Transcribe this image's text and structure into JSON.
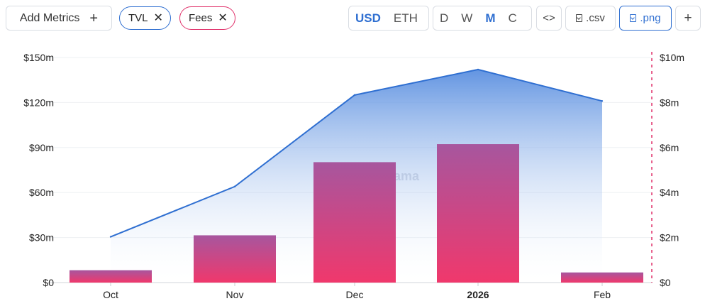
{
  "toolbar": {
    "add_metrics_label": "Add Metrics",
    "add_metrics_icon": "plus-icon",
    "metric_pills": [
      {
        "label": "TVL",
        "color": "#2f6fd1"
      },
      {
        "label": "Fees",
        "color": "#e0316a"
      }
    ],
    "remove_icon": "close-icon",
    "currency_options": [
      "USD",
      "ETH"
    ],
    "currency_selected": "USD",
    "period_options": [
      "D",
      "W",
      "M",
      "C"
    ],
    "period_selected": "M",
    "embed_label": "<>",
    "csv_label": ".csv",
    "png_label": ".png",
    "extra_label": "+"
  },
  "watermark": "ama",
  "colors": {
    "tvl_line": "#2f6fd1",
    "tvl_fill_top": "#5a8fe0",
    "fees_bar_top": "#a7569e",
    "fees_bar_bottom": "#f0386c",
    "right_axis": "#e0316a"
  },
  "chart_data": {
    "type": "bar+area",
    "categories": [
      "Oct",
      "Nov",
      "Dec",
      "2026",
      "Feb"
    ],
    "bold_categories": [
      "2026"
    ],
    "series": [
      {
        "name": "TVL",
        "type": "area",
        "axis": "left",
        "values": [
          30.5,
          64,
          125,
          142,
          121
        ]
      },
      {
        "name": "Fees",
        "type": "bar",
        "axis": "right",
        "values": [
          0.55,
          2.1,
          5.35,
          6.15,
          0.45
        ]
      }
    ],
    "y_left": {
      "ticks": [
        "$0",
        "$30m",
        "$60m",
        "$90m",
        "$120m",
        "$150m"
      ],
      "range": [
        0,
        150
      ]
    },
    "y_right": {
      "ticks": [
        "$0",
        "$2m",
        "$4m",
        "$6m",
        "$8m",
        "$10m"
      ],
      "range": [
        0,
        10
      ]
    },
    "grid": true
  }
}
